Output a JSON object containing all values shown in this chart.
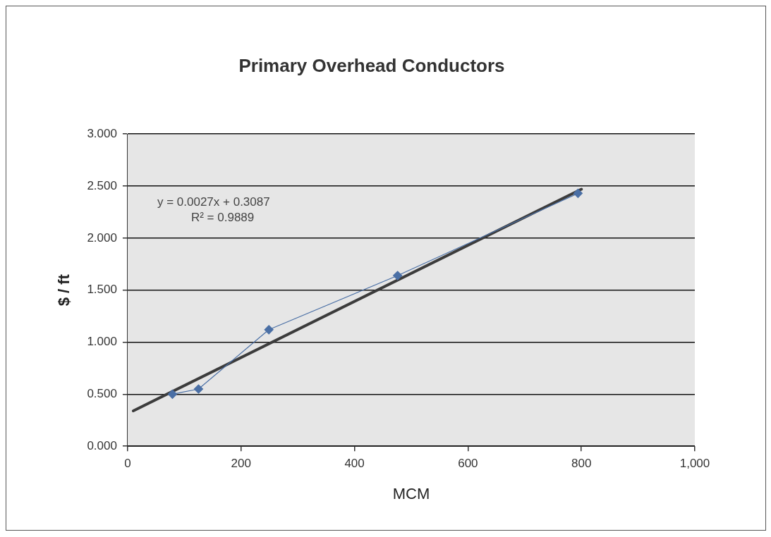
{
  "chart_data": {
    "type": "line",
    "title": "Primary Overhead Conductors",
    "xlabel": "MCM",
    "ylabel": "$ / ft",
    "series": [
      {
        "type": "line",
        "color": "#4a6fa5",
        "marker": "diamond",
        "x": [
          79,
          125,
          249,
          476,
          794
        ],
        "values": [
          0.5,
          0.55,
          1.12,
          1.64,
          2.43
        ]
      },
      {
        "type": "line",
        "color": "#3c3c3c",
        "marker": "none",
        "x": [
          10,
          800
        ],
        "values": [
          0.34,
          2.47
        ]
      }
    ],
    "xlim": [
      0,
      1000
    ],
    "xticks": [
      0,
      200,
      400,
      600,
      800,
      {
        "value": 1000,
        "label": "1,000"
      }
    ],
    "ylim": [
      0,
      3
    ],
    "yticks": [
      {
        "value": 0,
        "label": "0.000"
      },
      {
        "value": 0.5,
        "label": "0.500"
      },
      {
        "value": 1,
        "label": "1.000"
      },
      {
        "value": 1.5,
        "label": "1.500"
      },
      {
        "value": 2,
        "label": "2.000"
      },
      {
        "value": 2.5,
        "label": "2.500"
      },
      {
        "value": 3,
        "label": "3.000"
      }
    ],
    "grid": "y",
    "annotations": [
      "y = 0.0027x + 0.3087",
      "R² = 0.9889"
    ]
  }
}
